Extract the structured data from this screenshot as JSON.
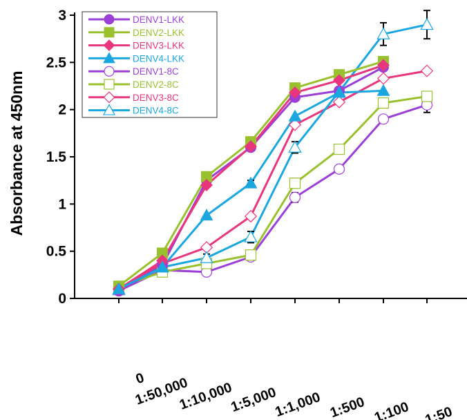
{
  "chart_data": {
    "type": "line",
    "title": "",
    "xlabel": "",
    "ylabel": "Absorbance at 450nm",
    "categories": [
      "0",
      "1:50,000",
      "1:10,000",
      "1:5,000",
      "1:1,000",
      "1:500",
      "1:100",
      "1:50"
    ],
    "ylim": [
      0,
      3
    ],
    "yticks": [
      0,
      0.5,
      1,
      1.5,
      2,
      2.5,
      3
    ],
    "ytick_labels": [
      "0",
      "0.5",
      "1",
      "1.5",
      "2",
      "2.5",
      "3"
    ],
    "grid": false,
    "legend_position": "top-left",
    "series": [
      {
        "name": "DENV1-LKK",
        "color": "#9b3fd6",
        "marker": "circle",
        "filled": true,
        "values": [
          0.08,
          0.35,
          1.25,
          1.6,
          2.13,
          2.2,
          2.45,
          null
        ],
        "errors": [
          0,
          0,
          0,
          0,
          0,
          0,
          0,
          null
        ]
      },
      {
        "name": "DENV2-LKK",
        "color": "#99c12e",
        "marker": "square",
        "filled": true,
        "values": [
          0.13,
          0.48,
          1.29,
          1.66,
          2.23,
          2.37,
          2.51,
          null
        ],
        "errors": [
          0,
          0,
          0,
          0,
          0,
          0,
          0,
          null
        ]
      },
      {
        "name": "DENV3-LKK",
        "color": "#e8357d",
        "marker": "diamond",
        "filled": true,
        "values": [
          0.1,
          0.4,
          1.2,
          1.61,
          2.18,
          2.31,
          2.47,
          null
        ],
        "errors": [
          0,
          0,
          0,
          0,
          0,
          0,
          0,
          null
        ]
      },
      {
        "name": "DENV4-LKK",
        "color": "#1aa7e0",
        "marker": "triangle",
        "filled": true,
        "values": [
          0.1,
          0.33,
          0.88,
          1.22,
          1.93,
          2.18,
          2.2,
          null
        ],
        "errors": [
          0,
          0,
          0,
          0.03,
          0,
          0,
          0,
          null
        ]
      },
      {
        "name": "DENV1-8C",
        "color": "#9b3fd6",
        "marker": "circle",
        "filled": false,
        "values": [
          0.08,
          0.3,
          0.28,
          0.44,
          1.07,
          1.37,
          1.9,
          2.05
        ],
        "errors": [
          0,
          0,
          0,
          0,
          0.05,
          0,
          0,
          0.08
        ]
      },
      {
        "name": "DENV2-8C",
        "color": "#99c12e",
        "marker": "square",
        "filled": false,
        "values": [
          0.12,
          0.28,
          0.37,
          0.46,
          1.22,
          1.58,
          2.07,
          2.14
        ],
        "errors": [
          0,
          0,
          0,
          0,
          0.05,
          0,
          0,
          0.04
        ]
      },
      {
        "name": "DENV3-8C",
        "color": "#e8357d",
        "marker": "diamond",
        "filled": false,
        "values": [
          0.1,
          0.37,
          0.54,
          0.87,
          1.84,
          2.08,
          2.33,
          2.41
        ],
        "errors": [
          0,
          0,
          0,
          0,
          0,
          0,
          0,
          0
        ]
      },
      {
        "name": "DENV4-8C",
        "color": "#1aa7e0",
        "marker": "triangle",
        "filled": false,
        "values": [
          0.09,
          0.33,
          0.43,
          0.65,
          1.6,
          2.19,
          2.8,
          2.9
        ],
        "errors": [
          0,
          0,
          0.04,
          0.06,
          0.06,
          0,
          0.12,
          0.15
        ]
      }
    ]
  }
}
